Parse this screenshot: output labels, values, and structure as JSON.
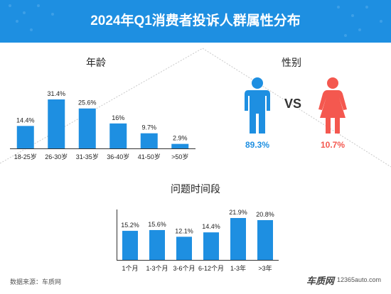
{
  "title": "2024年Q1消费者投诉人群属性分布",
  "colors": {
    "header": "#1e8fe1",
    "bar": "#1e8fe1",
    "male": "#1e8fe1",
    "female": "#f4584f"
  },
  "age_panel": {
    "title": "年龄"
  },
  "gender_panel": {
    "title": "性别",
    "vs": "VS",
    "male_pct": "89.3%",
    "female_pct": "10.7%",
    "male_icon": "male-person-icon",
    "female_icon": "female-person-icon"
  },
  "period_panel": {
    "title": "问题时间段"
  },
  "chart_data": [
    {
      "type": "bar",
      "title": "年龄",
      "categories": [
        "18-25岁",
        "26-30岁",
        "31-35岁",
        "36-40岁",
        "41-50岁",
        ">50岁"
      ],
      "values": [
        14.4,
        31.4,
        25.6,
        16,
        9.7,
        2.9
      ],
      "value_labels": [
        "14.4%",
        "31.4%",
        "25.6%",
        "16%",
        "9.7%",
        "2.9%"
      ],
      "ylim": [
        0,
        31.4
      ],
      "grid": false
    },
    {
      "type": "pie",
      "title": "性别",
      "categories": [
        "男",
        "女"
      ],
      "values": [
        89.3,
        10.7
      ]
    },
    {
      "type": "bar",
      "title": "问题时间段",
      "categories": [
        "1个月",
        "1-3个月",
        "3-6个月",
        "6-12个月",
        "1-3年",
        ">3年"
      ],
      "values": [
        15.2,
        15.6,
        12.1,
        14.4,
        21.9,
        20.8
      ],
      "value_labels": [
        "15.2%",
        "15.6%",
        "12.1%",
        "14.4%",
        "21.9%",
        "20.8%"
      ],
      "ylim": [
        0,
        21.9
      ],
      "grid": false
    }
  ],
  "footer": {
    "source": "数据来源：车质网",
    "brand": "车质网",
    "url": "12365auto.com"
  }
}
